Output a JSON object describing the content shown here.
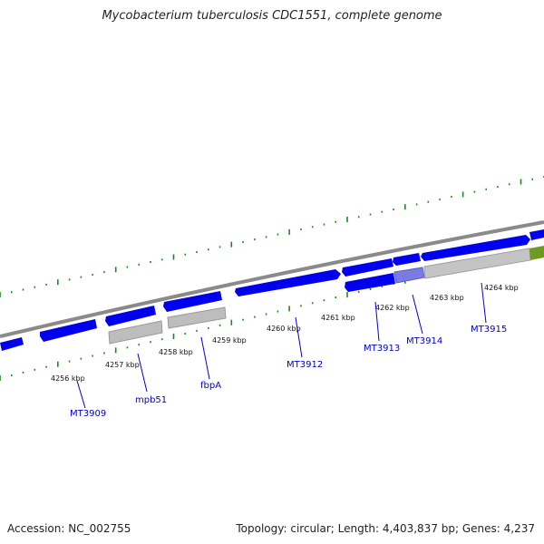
{
  "title": "Mycobacterium tuberculosis CDC1551, complete genome",
  "footer": {
    "accession": "Accession: NC_002755",
    "summary": "Topology: circular; Length: 4,403,837 bp; Genes: 4,237"
  },
  "colors": {
    "backbone": "#888888",
    "gene": "#0000ee",
    "gene_highlight": "#7c7ce0",
    "pseudogene": "#bbbbbb",
    "rna": "#6f9a1e",
    "gc_ticks": "#1b8a1b",
    "label": "#0000cc",
    "scale_text": "#111111"
  },
  "scale_labels": [
    "4256 kbp",
    "4257 kbp",
    "4258 kbp",
    "4259 kbp",
    "4260 kbp",
    "4261 kbp",
    "4262 kbp",
    "4263 kbp",
    "4264 kbp"
  ],
  "gene_labels": [
    "MT3909",
    "mpb51",
    "fbpA",
    "MT3912",
    "MT3913",
    "MT3914",
    "MT3915"
  ]
}
